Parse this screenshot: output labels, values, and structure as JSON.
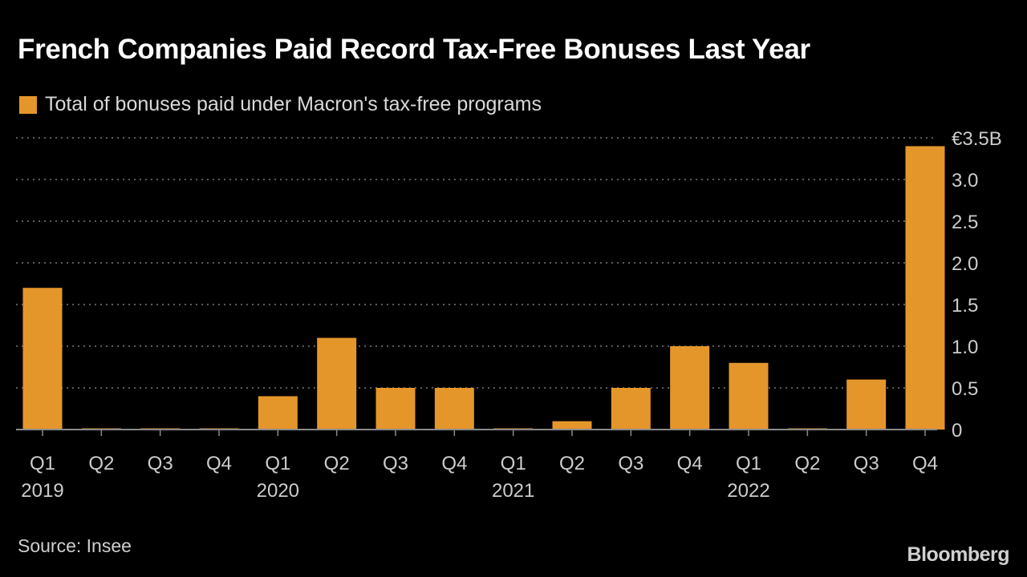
{
  "title": "French Companies Paid Record Tax-Free Bonuses Last Year",
  "source": "Source: Insee",
  "brand": "Bloomberg",
  "colors": {
    "bar": "#e5962a",
    "grid": "#7a7a7a",
    "axis_text": "#cccccc",
    "background": "#000000"
  },
  "chart_data": {
    "type": "bar",
    "series": [
      {
        "name": "Total of bonuses paid under Macron's tax-free programs",
        "values": [
          1.7,
          0,
          0,
          0,
          0.4,
          1.1,
          0.5,
          0.5,
          0,
          0.1,
          0.5,
          1.0,
          0.8,
          0,
          0.6,
          3.4
        ]
      }
    ],
    "categories": [
      "Q1",
      "Q2",
      "Q3",
      "Q4",
      "Q1",
      "Q2",
      "Q3",
      "Q4",
      "Q1",
      "Q2",
      "Q3",
      "Q4",
      "Q1",
      "Q2",
      "Q3",
      "Q4"
    ],
    "year_labels": [
      {
        "label": "2019",
        "index": 0
      },
      {
        "label": "2020",
        "index": 4
      },
      {
        "label": "2021",
        "index": 8
      },
      {
        "label": "2022",
        "index": 12
      }
    ],
    "yticks": [
      {
        "value": 0,
        "label": "0"
      },
      {
        "value": 0.5,
        "label": "0.5"
      },
      {
        "value": 1.0,
        "label": "1.0"
      },
      {
        "value": 1.5,
        "label": "1.5"
      },
      {
        "value": 2.0,
        "label": "2.0"
      },
      {
        "value": 2.5,
        "label": "2.5"
      },
      {
        "value": 3.0,
        "label": "3.0"
      },
      {
        "value": 3.5,
        "label": "€3.5B"
      }
    ],
    "ylim": [
      0,
      3.5
    ],
    "y_axis_position": "right",
    "grid": true,
    "legend_position": "top-left"
  }
}
